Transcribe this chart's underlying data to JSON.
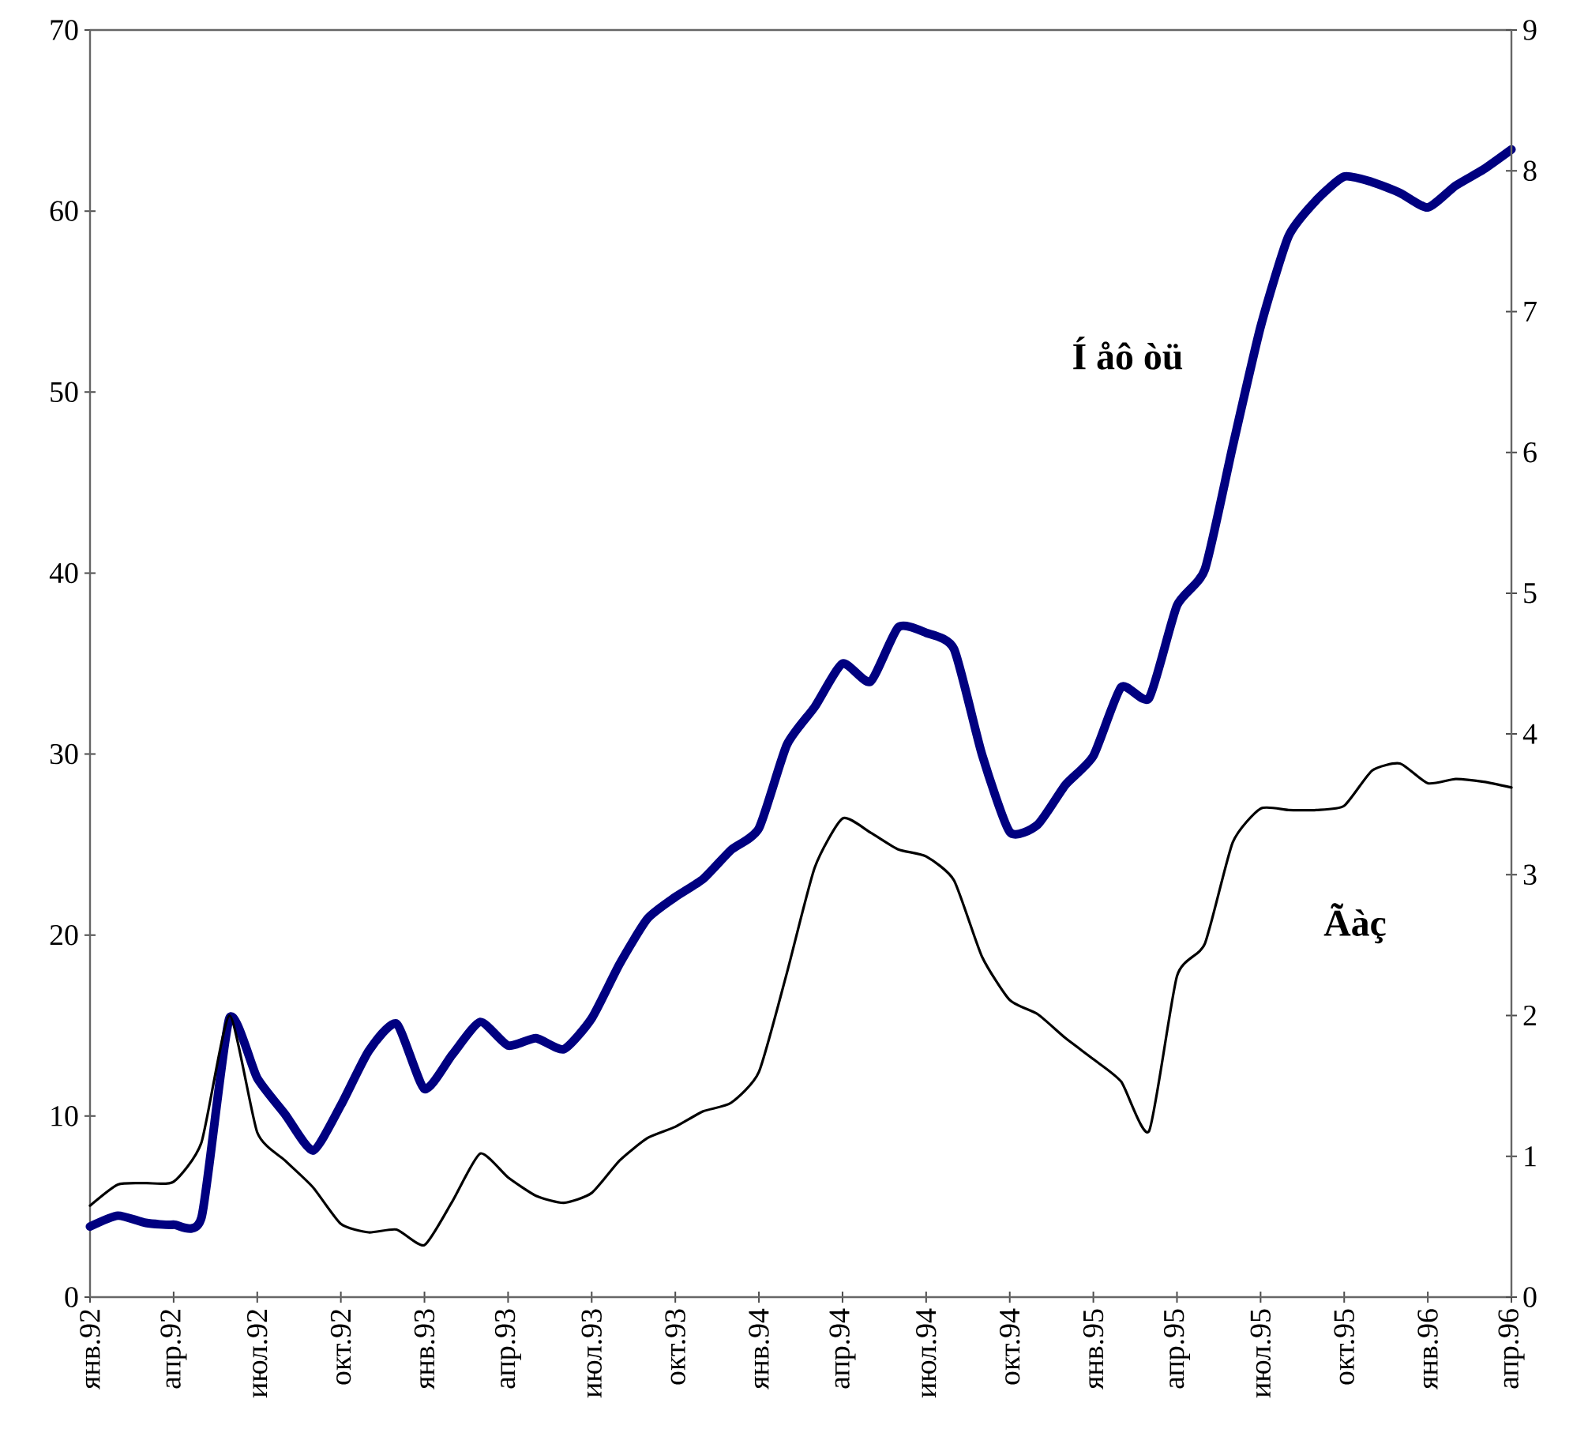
{
  "chart_data": {
    "type": "line",
    "categories": [
      "янв.92",
      null,
      null,
      "апр.92",
      null,
      null,
      "июл.92",
      null,
      null,
      "окт.92",
      null,
      null,
      "янв.93",
      null,
      null,
      "апр.93",
      null,
      null,
      "июл.93",
      null,
      null,
      "окт.93",
      null,
      null,
      "янв.94",
      null,
      null,
      "апр.94",
      null,
      null,
      "июл.94",
      null,
      null,
      "окт.94",
      null,
      null,
      "янв.95",
      null,
      null,
      "апр.95",
      null,
      null,
      "июл.95",
      null,
      null,
      "окт.95",
      null,
      null,
      "янв.96",
      null,
      null,
      "апр.96"
    ],
    "series": [
      {
        "name": "Í  åô òü",
        "color": "#000080",
        "values": [
          3.9,
          4.5,
          4.1,
          4.0,
          4.4,
          15.4,
          12.1,
          10.1,
          8.1,
          10.6,
          13.6,
          15.1,
          11.5,
          13.4,
          15.2,
          13.9,
          14.3,
          13.7,
          15.4,
          18.4,
          20.9,
          22.1,
          23.1,
          24.7,
          25.9,
          30.5,
          32.6,
          35.0,
          34.0,
          37.0,
          36.7,
          35.8,
          30.0,
          25.7,
          26.1,
          28.3,
          29.9,
          33.7,
          33.1,
          38.2,
          40.2,
          47.0,
          53.6,
          58.6,
          60.6,
          61.9,
          61.6,
          61.0,
          60.2,
          61.4,
          62.3,
          63.4
        ]
      },
      {
        "name": "Ãàç",
        "color": "#000000",
        "axis": "y2",
        "values": [
          0.65,
          0.8,
          0.81,
          0.82,
          1.1,
          2.0,
          1.17,
          0.97,
          0.78,
          0.52,
          0.46,
          0.48,
          0.37,
          0.68,
          1.02,
          0.85,
          0.72,
          0.67,
          0.74,
          0.97,
          1.13,
          1.21,
          1.32,
          1.38,
          1.6,
          2.3,
          3.05,
          3.4,
          3.3,
          3.18,
          3.13,
          2.96,
          2.42,
          2.11,
          2.01,
          1.84,
          1.69,
          1.53,
          1.18,
          2.28,
          2.51,
          3.23,
          3.47,
          3.46,
          3.46,
          3.49,
          3.74,
          3.79,
          3.65,
          3.68,
          3.66,
          3.62
        ]
      }
    ],
    "ylim": [
      0,
      70
    ],
    "yticks": [
      0,
      10,
      20,
      30,
      40,
      50,
      60,
      70
    ],
    "y2lim": [
      0,
      9
    ],
    "y2ticks": [
      0,
      1,
      2,
      3,
      4,
      5,
      6,
      7,
      8,
      9
    ]
  }
}
